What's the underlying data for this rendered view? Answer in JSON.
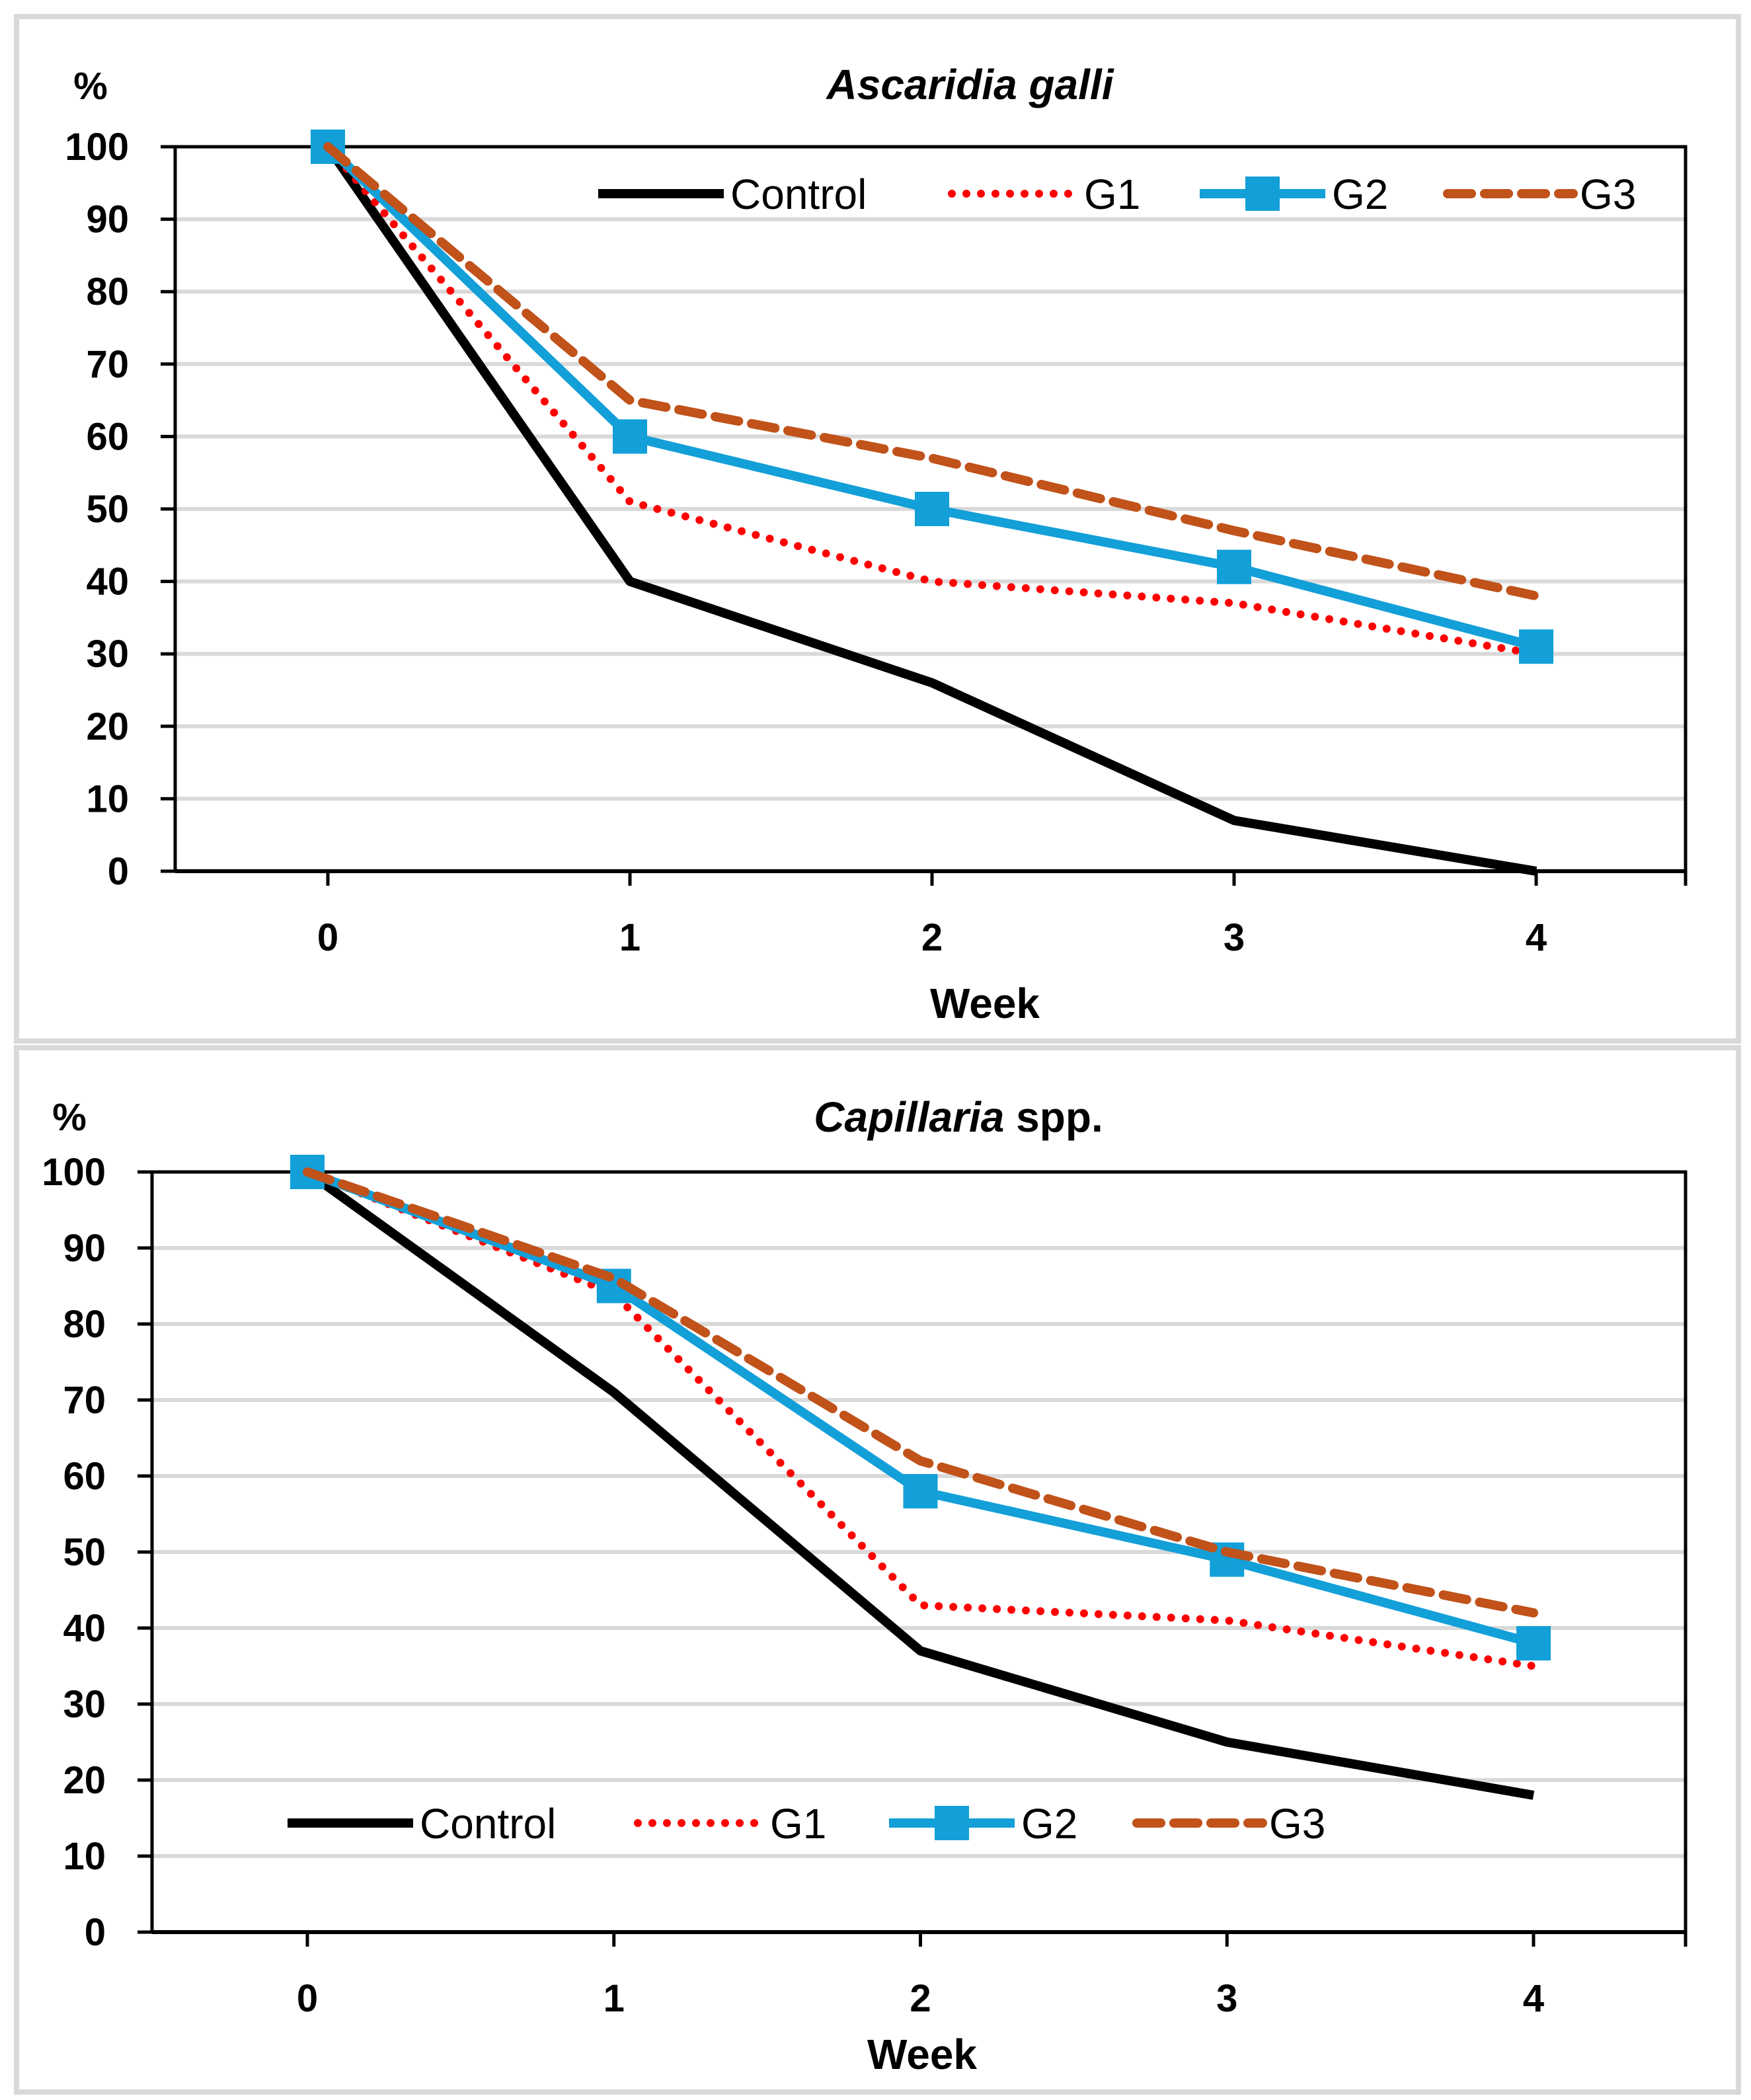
{
  "chart_data": [
    {
      "type": "line",
      "title_italic": "Ascaridia galli",
      "title_rest": "",
      "ylabel": "%",
      "xlabel": "Week",
      "x": [
        0,
        1,
        2,
        3,
        4
      ],
      "ylim": [
        0,
        100
      ],
      "yticks": [
        0,
        10,
        20,
        30,
        40,
        50,
        60,
        70,
        80,
        90,
        100
      ],
      "grid": true,
      "legend_position": "top",
      "series": [
        {
          "name": "Control",
          "values": [
            100,
            40,
            26,
            7,
            0
          ]
        },
        {
          "name": "G1",
          "values": [
            100,
            51,
            40,
            37,
            30
          ]
        },
        {
          "name": "G2",
          "values": [
            100,
            60,
            50,
            42,
            31
          ]
        },
        {
          "name": "G3",
          "values": [
            100,
            65,
            57,
            47,
            38
          ]
        }
      ]
    },
    {
      "type": "line",
      "title_italic": "Capillaria",
      "title_rest": " spp.",
      "ylabel": "%",
      "xlabel": "Week",
      "x": [
        0,
        1,
        2,
        3,
        4
      ],
      "ylim": [
        0,
        100
      ],
      "yticks": [
        0,
        10,
        20,
        30,
        40,
        50,
        60,
        70,
        80,
        90,
        100
      ],
      "grid": true,
      "legend_position": "bottom",
      "series": [
        {
          "name": "Control",
          "values": [
            100,
            71,
            37,
            25,
            18
          ]
        },
        {
          "name": "G1",
          "values": [
            100,
            84,
            43,
            41,
            35
          ]
        },
        {
          "name": "G2",
          "values": [
            100,
            85,
            58,
            49,
            38
          ]
        },
        {
          "name": "G3",
          "values": [
            100,
            86,
            62,
            50,
            42
          ]
        }
      ]
    }
  ],
  "colors": {
    "Control": "#000000",
    "G1": "#ff0000",
    "G2": "#139fd8",
    "G3": "#c0521a",
    "grid": "#d9d9d9",
    "panel_border": "#d9d9d9"
  }
}
